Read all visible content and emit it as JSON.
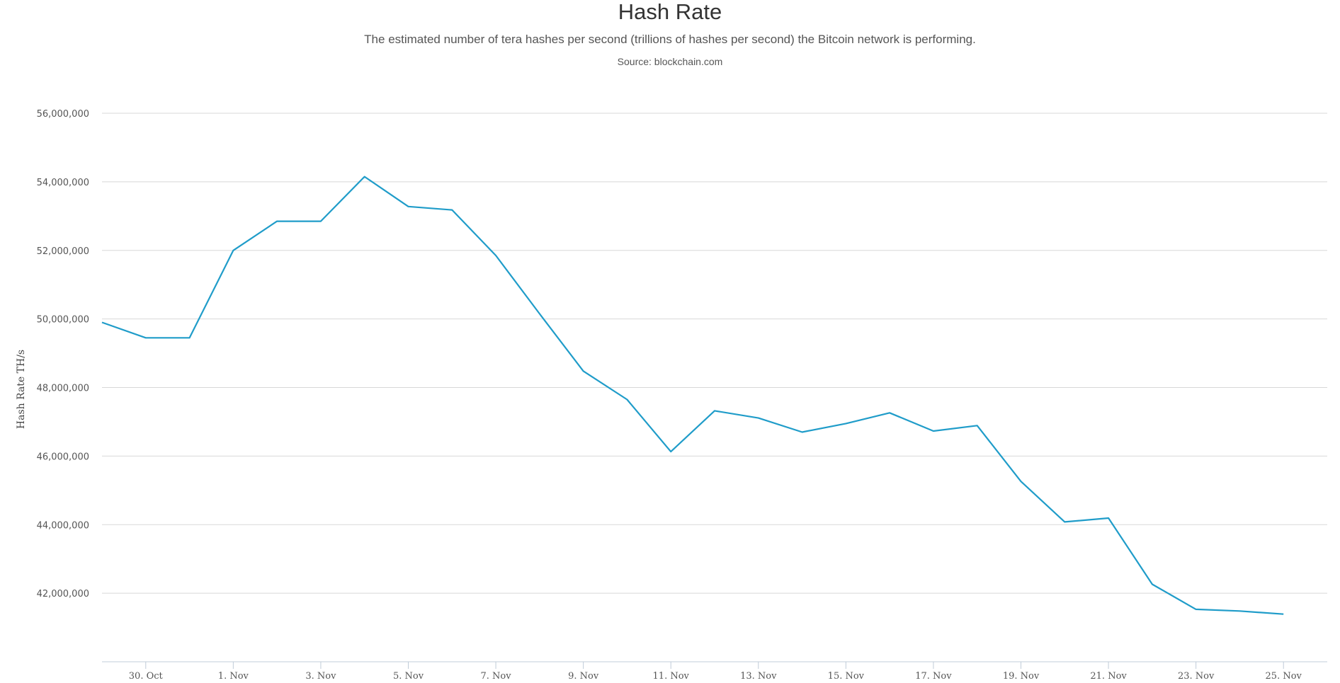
{
  "chart_data": {
    "type": "line",
    "title": "Hash Rate",
    "subtitle": "The estimated number of tera hashes per second (trillions of hashes per second) the Bitcoin network is performing.",
    "source": "Source: blockchain.com",
    "ylabel": "Hash Rate TH/s",
    "xlabel": "",
    "ylim": [
      40000000,
      56000000
    ],
    "yticks": [
      42000000,
      44000000,
      46000000,
      48000000,
      50000000,
      52000000,
      54000000,
      56000000
    ],
    "ytick_labels": [
      "42,000,000",
      "44,000,000",
      "46,000,000",
      "48,000,000",
      "50,000,000",
      "52,000,000",
      "54,000,000",
      "56,000,000"
    ],
    "xlim": [
      "2019-10-29",
      "2019-11-26"
    ],
    "xticks": [
      "2019-10-30",
      "2019-11-01",
      "2019-11-03",
      "2019-11-05",
      "2019-11-07",
      "2019-11-09",
      "2019-11-11",
      "2019-11-13",
      "2019-11-15",
      "2019-11-17",
      "2019-11-19",
      "2019-11-21",
      "2019-11-23",
      "2019-11-25"
    ],
    "xtick_labels": [
      "30. Oct",
      "1. Nov",
      "3. Nov",
      "5. Nov",
      "7. Nov",
      "9. Nov",
      "11. Nov",
      "13. Nov",
      "15. Nov",
      "17. Nov",
      "19. Nov",
      "21. Nov",
      "23. Nov",
      "25. Nov"
    ],
    "grid": true,
    "line_color": "#1f9cc9",
    "series": [
      {
        "x": [
          "2019-10-29",
          "2019-10-30",
          "2019-10-31",
          "2019-11-01",
          "2019-11-02",
          "2019-11-03",
          "2019-11-04",
          "2019-11-05",
          "2019-11-06",
          "2019-11-07",
          "2019-11-08",
          "2019-11-09",
          "2019-11-10",
          "2019-11-11",
          "2019-11-12",
          "2019-11-13",
          "2019-11-14",
          "2019-11-15",
          "2019-11-16",
          "2019-11-17",
          "2019-11-18",
          "2019-11-19",
          "2019-11-20",
          "2019-11-21",
          "2019-11-22",
          "2019-11-23",
          "2019-11-24",
          "2019-11-25"
        ],
        "y": [
          49900000,
          49450000,
          49450000,
          52000000,
          52850000,
          52850000,
          54150000,
          53280000,
          53180000,
          51850000,
          50150000,
          48480000,
          47650000,
          46130000,
          47320000,
          47110000,
          46700000,
          46950000,
          47260000,
          46730000,
          46890000,
          45260000,
          44080000,
          44190000,
          42260000,
          41530000,
          41480000,
          41390000
        ]
      }
    ]
  }
}
